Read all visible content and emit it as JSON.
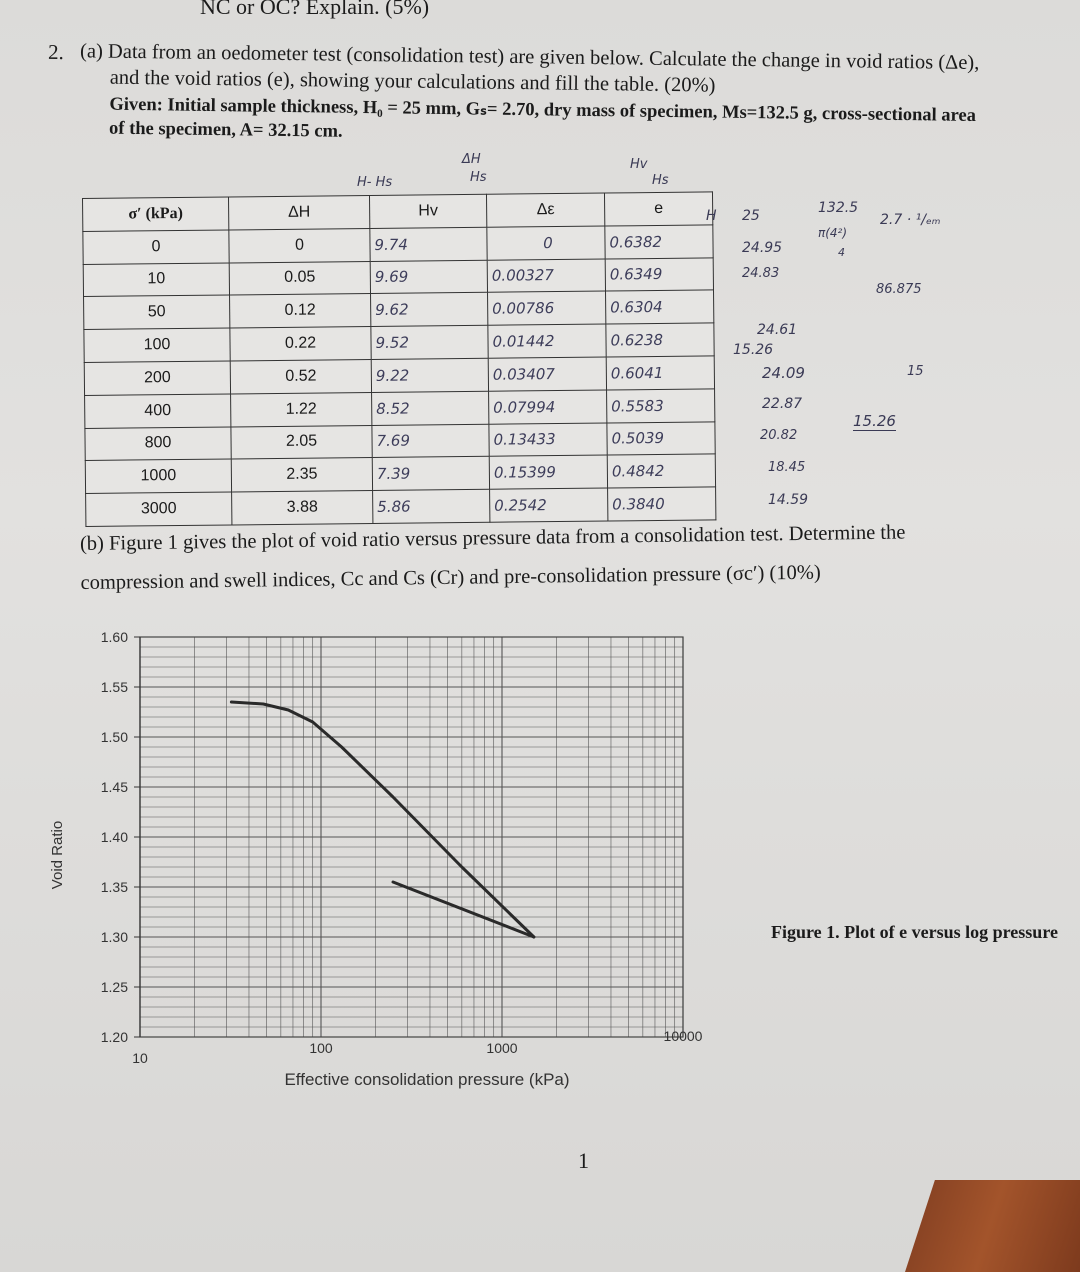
{
  "header_fragment": "NC or OC? Explain. (5%)",
  "q2a": {
    "number": "2.",
    "line1": "(a) Data from an oedometer test (consolidation test) are given below. Calculate the change in void ratios (Δe),",
    "line2": "and the void ratios (e), showing your calculations and fill the table. (20%)",
    "line3": "Given: Initial sample thickness, H₀ = 25 mm, Gₛ= 2.70, dry mass of specimen, Ms=132.5 g, cross-sectional area",
    "line4": "of the specimen, A= 32.15 cm."
  },
  "above_table_notes": [
    "H- Hs",
    "ΔH",
    "Hs",
    "Hv",
    "Hs"
  ],
  "table": {
    "headers": [
      "σ′ (kPa)",
      "ΔH",
      "Hv",
      "Δε",
      "e"
    ],
    "rows": [
      [
        "0",
        "0",
        "9.74",
        "0",
        "0.6382"
      ],
      [
        "10",
        "0.05",
        "9.69",
        "0.00327",
        "0.6349"
      ],
      [
        "50",
        "0.12",
        "9.62",
        "0.00786",
        "0.6304"
      ],
      [
        "100",
        "0.22",
        "9.52",
        "0.01442",
        "0.6238"
      ],
      [
        "200",
        "0.52",
        "9.22",
        "0.03407",
        "0.6041"
      ],
      [
        "400",
        "1.22",
        "8.52",
        "0.07994",
        "0.5583"
      ],
      [
        "800",
        "2.05",
        "7.69",
        "0.13433",
        "0.5039"
      ],
      [
        "1000",
        "2.35",
        "7.39",
        "0.15399",
        "0.4842"
      ],
      [
        "3000",
        "3.88",
        "5.86",
        "0.2542",
        "0.3840"
      ]
    ]
  },
  "side_notes": {
    "H": "H",
    "h25": "25",
    "frac_top": "132.5",
    "frac_mid": "π(4²)",
    "frac_bot": "4",
    "times": "2.7 · ¹/ₑₘ",
    "v1": "24.95",
    "v2": "24.83",
    "v3": "86.875",
    "v4": "24.61",
    "v5": "15.26",
    "v6": "24.09",
    "v7": "15",
    "v8": "22.87",
    "v9": "15.26",
    "v10": "20.82",
    "v11": "18.45",
    "v12": "14.59"
  },
  "q2b": {
    "line1": "(b) Figure 1 gives the plot of void ratio versus pressure data from a consolidation test. Determine the",
    "line2": "compression and swell indices, Cc and Cs (Cr) and pre-consolidation pressure (σc′) (10%)"
  },
  "chart_data": {
    "type": "line",
    "xlabel": "Effective consolidation pressure (kPa)",
    "ylabel": "Void Ratio",
    "x_scale": "log",
    "xlim": [
      10,
      10000
    ],
    "ylim": [
      1.2,
      1.6
    ],
    "x_ticks": [
      "10",
      "100",
      "1000",
      "10000"
    ],
    "y_ticks": [
      "1.60",
      "1.55",
      "1.50",
      "1.45",
      "1.40",
      "1.35",
      "1.30",
      "1.25",
      "1.20"
    ],
    "grid": true,
    "series": [
      {
        "values": [
          [
            32,
            1.535
          ],
          [
            48,
            1.533
          ],
          [
            66,
            1.527
          ],
          [
            90,
            1.515
          ],
          [
            130,
            1.49
          ],
          [
            250,
            1.44
          ],
          [
            600,
            1.37
          ],
          [
            1500,
            1.3
          ]
        ]
      },
      {
        "values": [
          [
            250,
            1.355
          ],
          [
            1500,
            1.3
          ]
        ]
      }
    ]
  },
  "figure_caption": "Figure 1. Plot of e versus log pressure",
  "page_number": "1"
}
